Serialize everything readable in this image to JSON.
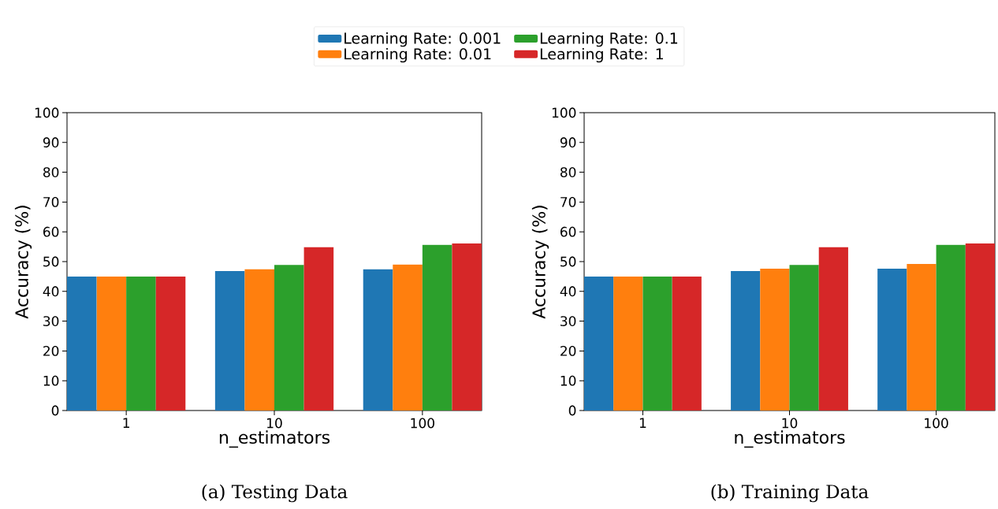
{
  "chart_data": [
    {
      "type": "bar",
      "categories": [
        "1",
        "10",
        "100"
      ],
      "xlabel": "n_estimators",
      "ylabel": "Accuracy (%)",
      "ylim": [
        0,
        100
      ],
      "yticks": [
        0,
        10,
        20,
        30,
        40,
        50,
        60,
        70,
        80,
        90,
        100
      ],
      "legend": "top",
      "annotations": [
        "(a) Testing Data"
      ],
      "series": [
        {
          "name": "Learning Rate: 0.001",
          "color": "#1f77b4",
          "values": [
            45.0,
            46.8,
            47.4
          ]
        },
        {
          "name": "Learning Rate: 0.01",
          "color": "#ff7f0e",
          "values": [
            45.0,
            47.4,
            49.0
          ]
        },
        {
          "name": "Learning Rate: 0.1",
          "color": "#2ca02c",
          "values": [
            45.0,
            48.9,
            55.6
          ]
        },
        {
          "name": "Learning Rate: 1",
          "color": "#d62728",
          "values": [
            45.0,
            54.8,
            56.1
          ]
        }
      ]
    },
    {
      "type": "bar",
      "categories": [
        "1",
        "10",
        "100"
      ],
      "xlabel": "n_estimators",
      "ylabel": "Accuracy (%)",
      "ylim": [
        0,
        100
      ],
      "yticks": [
        0,
        10,
        20,
        30,
        40,
        50,
        60,
        70,
        80,
        90,
        100
      ],
      "annotations": [
        "(b) Training Data"
      ],
      "series": [
        {
          "color": "#1f77b4",
          "values": [
            45.0,
            46.8,
            47.6
          ]
        },
        {
          "color": "#ff7f0e",
          "values": [
            45.0,
            47.6,
            49.2
          ]
        },
        {
          "color": "#2ca02c",
          "values": [
            45.0,
            48.9,
            55.6
          ]
        },
        {
          "color": "#d62728",
          "values": [
            45.0,
            54.8,
            56.1
          ]
        }
      ]
    }
  ]
}
